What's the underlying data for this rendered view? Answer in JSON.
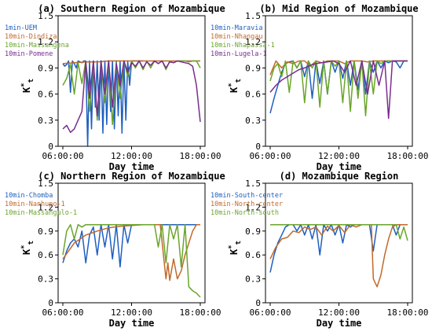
{
  "chart_data": [
    {
      "type": "line",
      "title": "(a) Southern Region of Mozambique",
      "xlabel": "Day time",
      "ylabel": "K*t",
      "ylim": [
        0,
        1.5
      ],
      "yticks": [
        "0",
        "0.3",
        "0.6",
        "0.9",
        "1.2",
        "1.5"
      ],
      "xticks": [
        "06:00:00",
        "12:00:00",
        "18:00:00"
      ],
      "xlim": [
        "06:00",
        "18:00"
      ],
      "legend_position": "top-left",
      "series": [
        {
          "name": "1min-UEM",
          "color": "#1f5fbf",
          "x": [
            "06:00",
            "06:10",
            "06:20",
            "06:30",
            "06:40",
            "06:50",
            "07:00",
            "07:10",
            "07:20",
            "07:30",
            "07:40",
            "07:50",
            "08:00",
            "08:10",
            "08:20",
            "08:30",
            "08:40",
            "08:50",
            "09:00",
            "09:10",
            "09:20",
            "09:30",
            "09:40",
            "09:50",
            "10:00",
            "10:10",
            "10:20",
            "10:30",
            "10:40",
            "10:50",
            "11:00",
            "11:10",
            "11:20",
            "11:30",
            "11:40",
            "11:50",
            "12:00",
            "12:30",
            "13:00"
          ],
          "values": [
            0.95,
            0.92,
            0.94,
            0.98,
            0.62,
            0.98,
            0.95,
            0.9,
            0.98,
            0.97,
            0.96,
            0.98,
            0.98,
            0.0,
            0.98,
            0.2,
            0.98,
            0.45,
            0.98,
            0.3,
            0.98,
            0.15,
            0.98,
            0.25,
            0.98,
            0.4,
            0.98,
            0.2,
            0.98,
            0.35,
            0.98,
            0.15,
            0.98,
            0.3,
            0.98,
            0.7,
            0.98,
            0.98,
            0.98
          ]
        },
        {
          "name": "10min-Dindiza",
          "color": "#c2692a",
          "x": [
            "06:00",
            "07:00",
            "08:00",
            "09:00",
            "10:00",
            "11:00",
            "12:00",
            "13:00",
            "14:00",
            "15:00",
            "16:00",
            "17:00",
            "18:00"
          ],
          "values": [
            0.95,
            0.96,
            0.97,
            0.97,
            0.98,
            0.98,
            0.98,
            0.98,
            0.98,
            0.98,
            0.98,
            0.98,
            0.98
          ]
        },
        {
          "name": "10min-Massangena",
          "color": "#6aa52a",
          "x": [
            "06:00",
            "06:20",
            "06:40",
            "07:00",
            "07:20",
            "07:40",
            "08:00",
            "08:20",
            "08:40",
            "09:00",
            "09:20",
            "09:40",
            "10:00",
            "10:20",
            "10:40",
            "11:00",
            "11:20",
            "11:40",
            "12:00",
            "12:20",
            "12:40",
            "13:00",
            "13:20",
            "13:40",
            "14:00",
            "14:20",
            "14:40",
            "15:00",
            "15:20",
            "15:40",
            "16:00",
            "16:20",
            "16:40",
            "17:00",
            "17:20",
            "17:40",
            "18:00"
          ],
          "values": [
            0.7,
            0.78,
            0.94,
            0.6,
            0.96,
            0.72,
            0.98,
            0.4,
            0.96,
            0.3,
            0.98,
            0.5,
            0.98,
            0.25,
            0.96,
            0.55,
            0.98,
            0.8,
            0.98,
            0.9,
            0.98,
            0.88,
            0.98,
            0.9,
            0.98,
            0.95,
            0.98,
            0.88,
            0.98,
            0.96,
            0.98,
            0.98,
            0.98,
            0.97,
            0.98,
            0.98,
            0.9
          ]
        },
        {
          "name": "10min-Pomene",
          "color": "#7a2d8f",
          "x": [
            "06:00",
            "06:20",
            "06:40",
            "07:00",
            "07:20",
            "07:40",
            "08:00",
            "08:20",
            "08:40",
            "09:00",
            "09:20",
            "09:40",
            "10:00",
            "10:20",
            "10:40",
            "11:00",
            "11:20",
            "11:40",
            "12:00",
            "12:20",
            "12:40",
            "13:00",
            "13:20",
            "13:40",
            "14:00",
            "14:20",
            "14:40",
            "15:00",
            "15:20",
            "15:40",
            "16:00",
            "16:20",
            "16:40",
            "17:00",
            "17:20",
            "17:40",
            "18:00"
          ],
          "values": [
            0.2,
            0.24,
            0.16,
            0.2,
            0.3,
            0.4,
            0.97,
            0.55,
            0.98,
            0.35,
            0.98,
            0.6,
            0.98,
            0.45,
            0.95,
            0.7,
            0.98,
            0.85,
            0.96,
            0.92,
            0.98,
            0.9,
            0.97,
            0.93,
            0.98,
            0.95,
            0.98,
            0.9,
            0.97,
            0.96,
            0.98,
            0.97,
            0.96,
            0.95,
            0.92,
            0.7,
            0.28
          ]
        }
      ]
    },
    {
      "type": "line",
      "title": "(b) Mid Region of Mozambique",
      "xlabel": "Day time",
      "ylabel": "K*t",
      "ylim": [
        0,
        1.5
      ],
      "yticks": [
        "0",
        "0.3",
        "0.6",
        "0.9",
        "1.2",
        "1.5"
      ],
      "xticks": [
        "06:00:00",
        "12:00:00",
        "18:00:00"
      ],
      "xlim": [
        "06:00",
        "18:00"
      ],
      "legend_position": "top-left",
      "series": [
        {
          "name": "10min-Maravia",
          "color": "#1f5fbf",
          "x": [
            "06:00",
            "06:20",
            "06:40",
            "07:00",
            "07:20",
            "07:40",
            "08:00",
            "08:20",
            "08:40",
            "09:00",
            "09:20",
            "09:40",
            "10:00",
            "10:20",
            "10:40",
            "11:00",
            "11:20",
            "11:40",
            "12:00",
            "12:20",
            "12:40",
            "13:00",
            "13:20",
            "13:40",
            "14:00",
            "14:20",
            "14:40",
            "15:00",
            "15:20",
            "15:40",
            "16:00",
            "16:20",
            "16:40",
            "17:00",
            "17:20",
            "17:40",
            "18:00"
          ],
          "values": [
            0.38,
            0.55,
            0.7,
            0.85,
            0.95,
            0.97,
            0.98,
            0.9,
            0.98,
            0.8,
            0.98,
            0.55,
            0.98,
            0.72,
            0.98,
            0.6,
            0.98,
            0.85,
            0.98,
            0.78,
            0.98,
            0.7,
            0.98,
            0.65,
            0.98,
            0.6,
            0.98,
            0.85,
            0.98,
            0.9,
            0.98,
            0.96,
            0.98,
            0.97,
            0.9,
            0.98,
            0.98
          ]
        },
        {
          "name": "10min-Nhangau",
          "color": "#c2692a",
          "x": [
            "06:00",
            "06:30",
            "07:00",
            "07:30",
            "08:00",
            "08:30",
            "09:00",
            "09:30",
            "10:00",
            "10:30",
            "11:00",
            "11:30",
            "12:00",
            "12:30",
            "13:00",
            "13:30",
            "14:00",
            "14:30",
            "15:00",
            "15:30",
            "16:00",
            "16:30",
            "17:00",
            "17:30",
            "18:00"
          ],
          "values": [
            0.82,
            0.98,
            0.9,
            0.97,
            0.95,
            0.98,
            0.98,
            0.92,
            0.98,
            0.96,
            0.98,
            0.98,
            0.98,
            0.95,
            0.98,
            0.98,
            0.98,
            0.97,
            0.98,
            0.98,
            0.98,
            0.98,
            0.98,
            0.98,
            0.98
          ]
        },
        {
          "name": "10min-Nhapassa-1",
          "color": "#6aa52a",
          "x": [
            "06:00",
            "06:20",
            "06:40",
            "07:00",
            "07:20",
            "07:40",
            "08:00",
            "08:20",
            "08:40",
            "09:00",
            "09:20",
            "09:40",
            "10:00",
            "10:20",
            "10:40",
            "11:00",
            "11:20",
            "11:40",
            "12:00",
            "12:20",
            "12:40",
            "13:00",
            "13:20",
            "13:40",
            "14:00",
            "14:20",
            "14:40",
            "15:00",
            "15:20",
            "15:40",
            "16:00",
            "16:20",
            "16:40",
            "17:00",
            "17:20",
            "17:40",
            "18:00"
          ],
          "values": [
            0.75,
            0.9,
            0.95,
            0.8,
            0.98,
            0.62,
            0.98,
            0.9,
            0.98,
            0.5,
            0.98,
            0.9,
            0.98,
            0.45,
            0.98,
            0.6,
            0.98,
            0.92,
            0.98,
            0.5,
            0.98,
            0.4,
            0.98,
            0.55,
            0.98,
            0.35,
            0.98,
            0.6,
            0.98,
            0.95,
            0.98,
            0.98,
            0.98,
            0.98,
            0.98,
            0.98,
            0.98
          ]
        },
        {
          "name": "10min-Lugela-1",
          "color": "#7a2d8f",
          "x": [
            "06:00",
            "06:30",
            "07:00",
            "07:30",
            "08:00",
            "08:30",
            "09:00",
            "09:30",
            "10:00",
            "10:30",
            "11:00",
            "11:30",
            "12:00",
            "12:30",
            "13:00",
            "13:30",
            "14:00",
            "14:30",
            "15:00",
            "15:30",
            "16:00",
            "16:20",
            "16:40",
            "17:00",
            "17:30",
            "18:00"
          ],
          "values": [
            0.62,
            0.7,
            0.76,
            0.8,
            0.84,
            0.88,
            0.9,
            0.93,
            0.95,
            0.96,
            0.97,
            0.98,
            0.95,
            0.85,
            0.98,
            0.7,
            0.98,
            0.6,
            0.98,
            0.7,
            0.98,
            0.32,
            0.98,
            0.98,
            0.98,
            0.98
          ]
        }
      ]
    },
    {
      "type": "line",
      "title": "(c) Northern Region of Mozambique",
      "xlabel": "Day time",
      "ylabel": "K*t",
      "ylim": [
        0,
        1.5
      ],
      "yticks": [
        "0",
        "0.3",
        "0.6",
        "0.9",
        "1.2",
        "1.5"
      ],
      "xticks": [
        "06:00:00",
        "12:00:00",
        "18:00:00"
      ],
      "xlim": [
        "06:00",
        "18:00"
      ],
      "legend_position": "top-left",
      "series": [
        {
          "name": "10min-Chomba",
          "color": "#1f5fbf",
          "x": [
            "06:00",
            "06:20",
            "06:40",
            "07:00",
            "07:20",
            "07:40",
            "08:00",
            "08:20",
            "08:40",
            "09:00",
            "09:20",
            "09:40",
            "10:00",
            "10:20",
            "10:40",
            "11:00",
            "11:20",
            "11:40",
            "12:00",
            "12:30",
            "13:00",
            "14:00",
            "15:00",
            "16:00",
            "17:00",
            "18:00"
          ],
          "values": [
            0.5,
            0.65,
            0.75,
            0.8,
            0.7,
            0.9,
            0.5,
            0.85,
            0.95,
            0.6,
            0.98,
            0.7,
            0.98,
            0.55,
            0.98,
            0.45,
            0.98,
            0.75,
            0.98,
            0.98,
            0.98,
            0.98,
            0.98,
            0.98,
            0.98,
            0.98
          ]
        },
        {
          "name": "10min-Nanhupo-1",
          "color": "#c2692a",
          "x": [
            "06:00",
            "07:00",
            "08:00",
            "09:00",
            "10:00",
            "11:00",
            "12:00",
            "13:00",
            "14:00",
            "14:30",
            "15:00",
            "15:10",
            "15:20",
            "15:40",
            "16:00",
            "16:20",
            "16:40",
            "17:00",
            "17:20",
            "17:40",
            "18:00"
          ],
          "values": [
            0.55,
            0.75,
            0.85,
            0.9,
            0.94,
            0.96,
            0.97,
            0.98,
            0.98,
            0.98,
            0.3,
            0.5,
            0.28,
            0.55,
            0.3,
            0.4,
            0.6,
            0.75,
            0.9,
            0.98,
            0.98
          ]
        },
        {
          "name": "10min-Massangulo-1",
          "color": "#6aa52a",
          "x": [
            "06:00",
            "06:20",
            "06:40",
            "07:00",
            "07:20",
            "07:40",
            "08:00",
            "08:20",
            "08:40",
            "09:00",
            "09:20",
            "09:40",
            "10:00",
            "10:20",
            "10:40",
            "11:00",
            "11:20",
            "11:40",
            "12:00",
            "12:30",
            "13:00",
            "13:30",
            "14:00",
            "14:20",
            "14:40",
            "15:00",
            "15:20",
            "15:40",
            "16:00",
            "16:20",
            "16:40",
            "17:00",
            "17:20",
            "17:40",
            "18:00"
          ],
          "values": [
            0.6,
            0.9,
            0.98,
            0.8,
            0.98,
            0.95,
            0.98,
            0.98,
            0.98,
            0.98,
            0.98,
            0.98,
            0.98,
            0.98,
            0.98,
            0.98,
            0.98,
            0.98,
            0.98,
            0.98,
            0.98,
            0.98,
            0.98,
            0.7,
            0.98,
            0.5,
            0.98,
            0.8,
            0.98,
            0.45,
            0.98,
            0.2,
            0.15,
            0.12,
            0.07
          ]
        }
      ]
    },
    {
      "type": "line",
      "title": "(d) Mozambique Region",
      "xlabel": "Day time",
      "ylabel": "K*t",
      "ylim": [
        0,
        1.5
      ],
      "yticks": [
        "0",
        "0.3",
        "0.6",
        "0.9",
        "1.2",
        "1.5"
      ],
      "xticks": [
        "06:00:00",
        "12:00:00",
        "18:00:00"
      ],
      "xlim": [
        "06:00",
        "18:00"
      ],
      "legend_position": "top-left",
      "series": [
        {
          "name": "10min-South-center",
          "color": "#1f5fbf",
          "x": [
            "06:00",
            "06:20",
            "06:40",
            "07:00",
            "07:20",
            "07:40",
            "08:00",
            "08:20",
            "08:40",
            "09:00",
            "09:20",
            "09:40",
            "10:00",
            "10:20",
            "10:40",
            "11:00",
            "11:20",
            "11:40",
            "12:00",
            "12:20",
            "12:40",
            "13:00",
            "13:20",
            "13:40",
            "14:00",
            "14:20",
            "14:40",
            "15:00",
            "15:20",
            "15:40",
            "16:00",
            "16:20",
            "16:40",
            "17:00",
            "17:20",
            "17:40",
            "18:00"
          ],
          "values": [
            0.38,
            0.6,
            0.75,
            0.85,
            0.95,
            0.98,
            0.98,
            0.9,
            0.98,
            0.85,
            0.98,
            0.8,
            0.98,
            0.6,
            0.98,
            0.9,
            0.98,
            0.85,
            0.98,
            0.75,
            0.98,
            0.95,
            0.98,
            0.98,
            0.98,
            0.98,
            0.98,
            0.65,
            0.98,
            0.98,
            0.98,
            0.98,
            0.98,
            0.85,
            0.98,
            0.98,
            0.98
          ]
        },
        {
          "name": "10min-North-center",
          "color": "#c2692a",
          "x": [
            "06:00",
            "06:30",
            "07:00",
            "07:30",
            "08:00",
            "08:30",
            "09:00",
            "09:30",
            "10:00",
            "10:30",
            "11:00",
            "11:30",
            "12:00",
            "12:30",
            "13:00",
            "13:30",
            "14:00",
            "14:30",
            "14:50",
            "15:00",
            "15:20",
            "15:40",
            "16:00",
            "16:20",
            "16:40",
            "17:00",
            "17:30",
            "18:00"
          ],
          "values": [
            0.55,
            0.7,
            0.8,
            0.82,
            0.9,
            0.88,
            0.95,
            0.92,
            0.95,
            0.85,
            0.96,
            0.9,
            0.97,
            0.88,
            0.98,
            0.95,
            0.98,
            0.98,
            0.98,
            0.3,
            0.2,
            0.35,
            0.6,
            0.8,
            0.95,
            0.98,
            0.98,
            0.98
          ]
        },
        {
          "name": "10min-North-south",
          "color": "#6aa52a",
          "x": [
            "06:00",
            "08:00",
            "10:00",
            "12:00",
            "14:00",
            "16:00",
            "17:00",
            "17:20",
            "17:40",
            "18:00"
          ],
          "values": [
            0.98,
            0.98,
            0.98,
            0.98,
            0.98,
            0.98,
            0.98,
            0.8,
            0.95,
            0.78
          ]
        }
      ]
    }
  ]
}
